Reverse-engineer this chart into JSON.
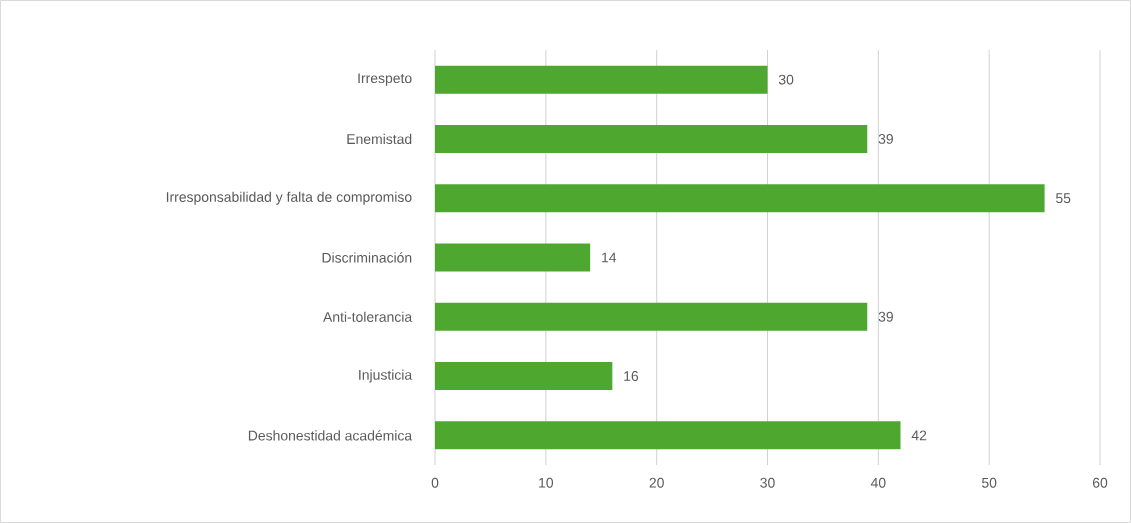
{
  "chart_data": {
    "type": "bar",
    "orientation": "horizontal",
    "categories": [
      "Irrespeto",
      "Enemistad",
      "Irresponsabilidad y falta de compromiso",
      "Discriminación",
      "Anti-tolerancia",
      "Injusticia",
      "Deshonestidad académica"
    ],
    "values": [
      30,
      39,
      55,
      14,
      39,
      16,
      42
    ],
    "color": "#4ea72e",
    "xlim": [
      0,
      60
    ],
    "xticks": [
      0,
      10,
      20,
      30,
      40,
      50,
      60
    ],
    "grid": "x",
    "data_labels": true
  }
}
